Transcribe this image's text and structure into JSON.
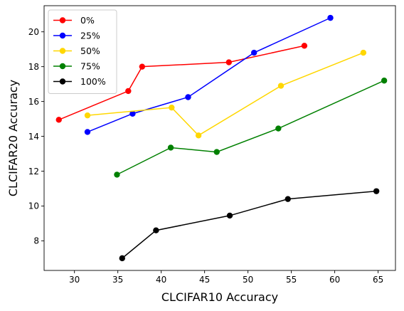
{
  "chart_data": {
    "type": "line",
    "title": "",
    "xlabel": "CLCIFAR10 Accuracy",
    "ylabel": "CLCIFAR20 Accuracy",
    "xlim": [
      26.5,
      67
    ],
    "ylim": [
      6.3,
      21.5
    ],
    "xticks": [
      30,
      35,
      40,
      45,
      50,
      55,
      60,
      65
    ],
    "yticks": [
      8,
      10,
      12,
      14,
      16,
      18,
      20
    ],
    "grid": false,
    "legend_position": "top-left",
    "series": [
      {
        "name": "0%",
        "color": "#ff0000",
        "points": [
          [
            28.2,
            14.95
          ],
          [
            36.2,
            16.6
          ],
          [
            37.8,
            18.0
          ],
          [
            47.8,
            18.25
          ],
          [
            56.5,
            19.2
          ]
        ]
      },
      {
        "name": "25%",
        "color": "#0000ff",
        "points": [
          [
            31.5,
            14.25
          ],
          [
            36.7,
            15.3
          ],
          [
            43.1,
            16.25
          ],
          [
            50.7,
            18.8
          ],
          [
            59.5,
            20.8
          ]
        ]
      },
      {
        "name": "50%",
        "color": "#ffd700",
        "points": [
          [
            31.5,
            15.2
          ],
          [
            41.2,
            15.65
          ],
          [
            44.3,
            14.05
          ],
          [
            53.8,
            16.9
          ],
          [
            63.3,
            18.8
          ]
        ]
      },
      {
        "name": "75%",
        "color": "#008000",
        "points": [
          [
            34.9,
            11.8
          ],
          [
            41.1,
            13.35
          ],
          [
            46.4,
            13.1
          ],
          [
            53.5,
            14.45
          ],
          [
            65.7,
            17.2
          ]
        ]
      },
      {
        "name": "100%",
        "color": "#000000",
        "points": [
          [
            35.5,
            7.0
          ],
          [
            39.4,
            8.6
          ],
          [
            47.9,
            9.45
          ],
          [
            54.6,
            10.4
          ],
          [
            64.8,
            10.85
          ]
        ]
      }
    ]
  }
}
